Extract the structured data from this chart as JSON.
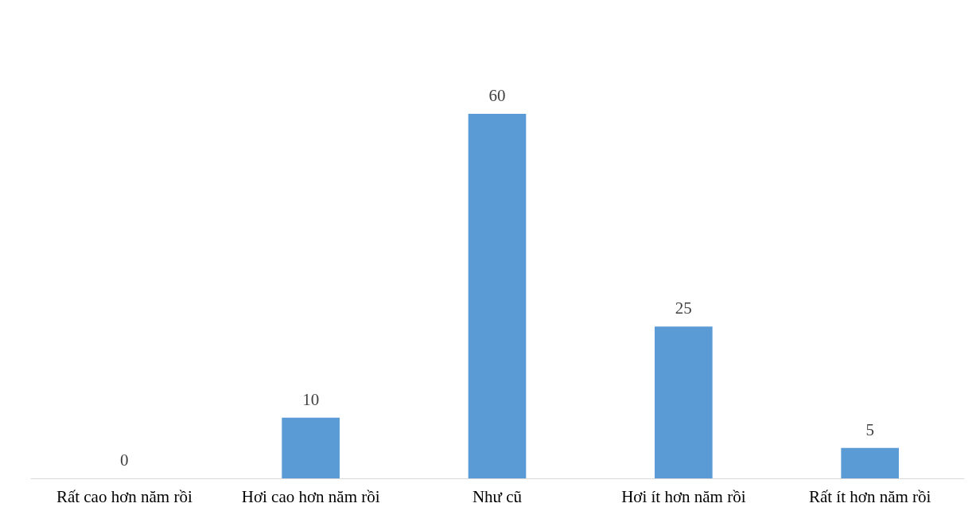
{
  "chart_data": {
    "type": "bar",
    "categories": [
      "Rất cao hơn năm rồi",
      "Hơi cao hơn năm rồi",
      "Như cũ",
      "Hơi ít hơn năm rồi",
      "Rất ít hơn năm rồi"
    ],
    "values": [
      0,
      10,
      60,
      25,
      5
    ],
    "color": "#5b9bd5",
    "data_labels": true
  }
}
